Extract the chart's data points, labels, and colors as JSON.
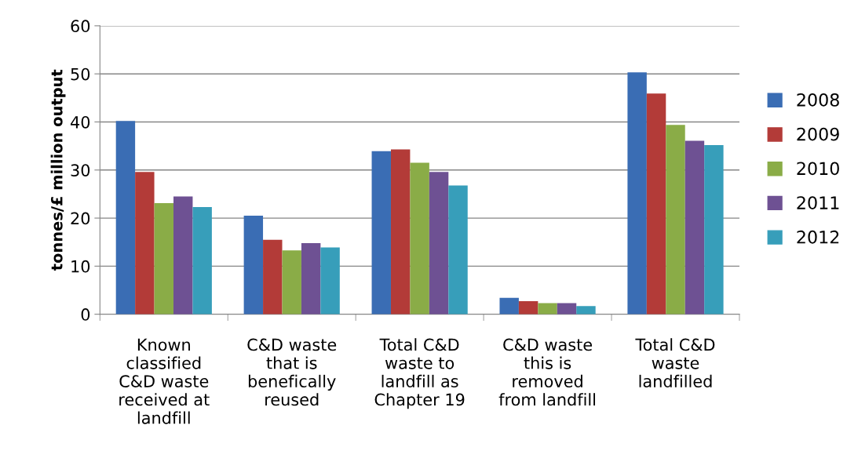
{
  "chart_data": {
    "type": "bar",
    "ylabel": "tonnes/£ million output",
    "categories": [
      "Known\nclassified\nC&D waste\nreceived at\nlandfill",
      "C&D waste\nthat is\nbenefically\nreused",
      "Total C&D\nwaste to\nlandfill as\nChapter 19",
      "C&D waste\nthis is\nremoved\nfrom landfill",
      "Total C&D\nwaste\nlandfilled"
    ],
    "series": [
      {
        "name": "2008",
        "color": "#3a6db4",
        "values": [
          40.2,
          20.5,
          33.9,
          3.4,
          50.3
        ]
      },
      {
        "name": "2009",
        "color": "#b33b38",
        "values": [
          29.6,
          15.5,
          34.3,
          2.7,
          45.9
        ]
      },
      {
        "name": "2010",
        "color": "#8aac47",
        "values": [
          23.1,
          13.3,
          31.5,
          2.3,
          39.4
        ]
      },
      {
        "name": "2011",
        "color": "#6e5193",
        "values": [
          24.5,
          14.8,
          29.6,
          2.3,
          36.1
        ]
      },
      {
        "name": "2012",
        "color": "#379eba",
        "values": [
          22.3,
          13.9,
          26.8,
          1.7,
          35.2
        ]
      }
    ],
    "ylim": [
      0,
      60
    ],
    "yticks": [
      0,
      10,
      20,
      30,
      40,
      50,
      60
    ],
    "grid": "y",
    "legend": "right"
  }
}
